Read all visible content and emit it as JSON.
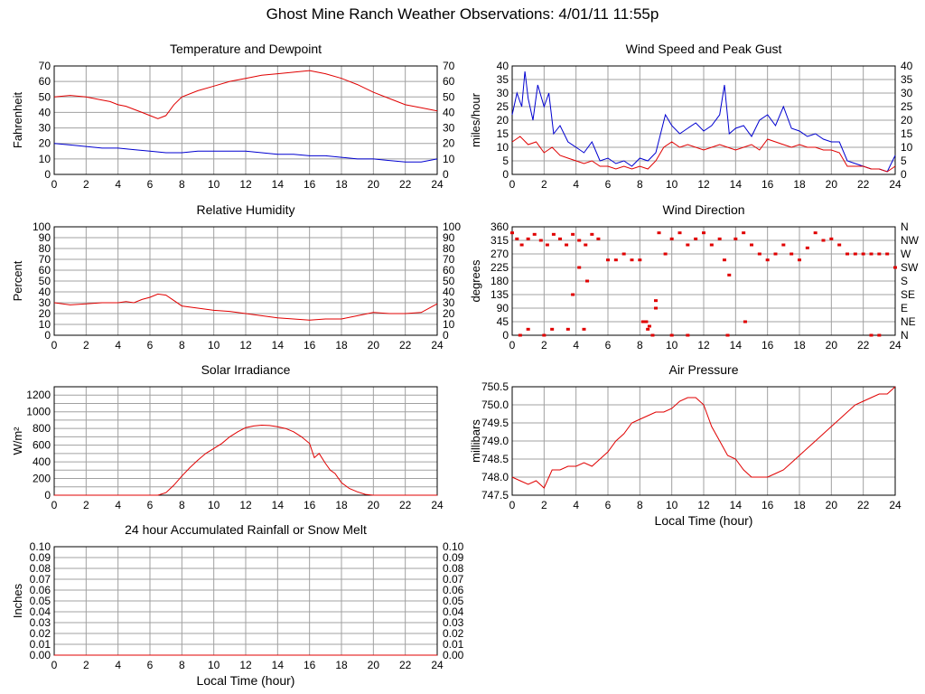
{
  "page": {
    "title": "Ghost Mine Ranch Weather Observations: 4/01/11 11:55p"
  },
  "colors": {
    "series_red": "#e00000",
    "series_blue": "#0000d0",
    "grid": "#a0a0a0",
    "frame": "#000000"
  },
  "chart_data": [
    {
      "id": "temp",
      "type": "line",
      "title": "Temperature and Dewpoint",
      "ylabel": "Fahrenheit",
      "xlabel": "",
      "xlim": [
        0,
        24
      ],
      "ylim": [
        0,
        70
      ],
      "xticks": [
        "0",
        "2",
        "4",
        "6",
        "8",
        "10",
        "12",
        "14",
        "16",
        "18",
        "20",
        "22",
        "24"
      ],
      "yticks": [
        "0",
        "10",
        "20",
        "30",
        "40",
        "50",
        "60",
        "70"
      ],
      "right_yticks": [
        "0",
        "10",
        "20",
        "30",
        "40",
        "50",
        "60",
        "70"
      ],
      "grid": true,
      "series": [
        {
          "color": "#e00000",
          "x": [
            0,
            1,
            2,
            3,
            3.5,
            4,
            4.5,
            5,
            5.5,
            6,
            6.5,
            7,
            7.5,
            8,
            9,
            10,
            11,
            12,
            13,
            14,
            15,
            16,
            16.5,
            17,
            18,
            19,
            20,
            21,
            22,
            23,
            24
          ],
          "y": [
            50,
            51,
            50,
            48,
            47,
            45,
            44,
            42,
            40,
            38,
            36,
            38,
            45,
            50,
            54,
            57,
            60,
            62,
            64,
            65,
            66,
            67,
            66,
            65,
            62,
            58,
            53,
            49,
            45,
            43,
            41
          ]
        },
        {
          "color": "#0000d0",
          "x": [
            0,
            1,
            2,
            3,
            4,
            5,
            6,
            7,
            8,
            9,
            10,
            11,
            12,
            13,
            14,
            15,
            16,
            17,
            18,
            19,
            20,
            21,
            22,
            23,
            24
          ],
          "y": [
            20,
            19,
            18,
            17,
            17,
            16,
            15,
            14,
            14,
            15,
            15,
            15,
            15,
            14,
            13,
            13,
            12,
            12,
            11,
            10,
            10,
            9,
            8,
            8,
            10
          ]
        }
      ]
    },
    {
      "id": "wind",
      "type": "line",
      "title": "Wind Speed and Peak Gust",
      "ylabel": "miles/hour",
      "xlabel": "",
      "xlim": [
        0,
        24
      ],
      "ylim": [
        0,
        40
      ],
      "xticks": [
        "0",
        "2",
        "4",
        "6",
        "8",
        "10",
        "12",
        "14",
        "16",
        "18",
        "20",
        "22",
        "24"
      ],
      "yticks": [
        "0",
        "5",
        "10",
        "15",
        "20",
        "25",
        "30",
        "35",
        "40"
      ],
      "right_yticks": [
        "0",
        "5",
        "10",
        "15",
        "20",
        "25",
        "30",
        "35",
        "40"
      ],
      "grid": true,
      "series": [
        {
          "color": "#0000d0",
          "x": [
            0,
            0.3,
            0.6,
            0.8,
            1,
            1.3,
            1.6,
            2,
            2.3,
            2.6,
            3,
            3.5,
            4,
            4.5,
            5,
            5.5,
            6,
            6.5,
            7,
            7.5,
            8,
            8.5,
            9,
            9.3,
            9.6,
            10,
            10.5,
            11,
            11.5,
            12,
            12.5,
            13,
            13.3,
            13.6,
            14,
            14.5,
            15,
            15.5,
            16,
            16.5,
            17,
            17.5,
            18,
            18.5,
            19,
            19.5,
            20,
            20.5,
            21,
            21.5,
            22,
            22.5,
            23,
            23.5,
            24
          ],
          "y": [
            22,
            30,
            25,
            38,
            28,
            20,
            33,
            25,
            30,
            15,
            18,
            12,
            10,
            8,
            12,
            5,
            6,
            4,
            5,
            3,
            6,
            5,
            8,
            15,
            22,
            18,
            15,
            17,
            19,
            16,
            18,
            22,
            33,
            15,
            17,
            18,
            14,
            20,
            22,
            18,
            25,
            17,
            16,
            14,
            15,
            13,
            12,
            12,
            5,
            4,
            3,
            2,
            2,
            1,
            7
          ]
        },
        {
          "color": "#e00000",
          "x": [
            0,
            0.5,
            1,
            1.5,
            2,
            2.5,
            3,
            3.5,
            4,
            4.5,
            5,
            5.5,
            6,
            6.5,
            7,
            7.5,
            8,
            8.5,
            9,
            9.5,
            10,
            10.5,
            11,
            11.5,
            12,
            12.5,
            13,
            13.5,
            14,
            14.5,
            15,
            15.5,
            16,
            16.5,
            17,
            17.5,
            18,
            18.5,
            19,
            19.5,
            20,
            20.5,
            21,
            21.5,
            22,
            22.5,
            23,
            23.5,
            24
          ],
          "y": [
            12,
            14,
            11,
            12,
            8,
            10,
            7,
            6,
            5,
            4,
            5,
            3,
            3,
            2,
            3,
            2,
            3,
            2,
            5,
            10,
            12,
            10,
            11,
            10,
            9,
            10,
            11,
            10,
            9,
            10,
            11,
            9,
            13,
            12,
            11,
            10,
            11,
            10,
            10,
            9,
            9,
            8,
            3,
            3,
            3,
            2,
            2,
            1,
            3
          ]
        }
      ]
    },
    {
      "id": "humidity",
      "type": "line",
      "title": "Relative Humidity",
      "ylabel": "Percent",
      "xlabel": "",
      "xlim": [
        0,
        24
      ],
      "ylim": [
        0,
        100
      ],
      "xticks": [
        "0",
        "2",
        "4",
        "6",
        "8",
        "10",
        "12",
        "14",
        "16",
        "18",
        "20",
        "22",
        "24"
      ],
      "yticks": [
        "0",
        "10",
        "20",
        "30",
        "40",
        "50",
        "60",
        "70",
        "80",
        "90",
        "100"
      ],
      "right_yticks": [
        "0",
        "10",
        "20",
        "30",
        "40",
        "50",
        "60",
        "70",
        "80",
        "90",
        "100"
      ],
      "grid": true,
      "series": [
        {
          "color": "#e00000",
          "x": [
            0,
            1,
            2,
            3,
            4,
            4.5,
            5,
            5.5,
            6,
            6.5,
            7,
            7.5,
            8,
            9,
            10,
            11,
            12,
            13,
            14,
            15,
            16,
            17,
            18,
            19,
            20,
            21,
            22,
            23,
            24
          ],
          "y": [
            30,
            28,
            29,
            30,
            30,
            31,
            30,
            33,
            35,
            38,
            37,
            32,
            27,
            25,
            23,
            22,
            20,
            18,
            16,
            15,
            14,
            15,
            15,
            18,
            21,
            20,
            20,
            21,
            29
          ]
        }
      ]
    },
    {
      "id": "direction",
      "type": "scatter",
      "title": "Wind Direction",
      "ylabel": "degrees",
      "xlabel": "",
      "xlim": [
        0,
        24
      ],
      "ylim": [
        0,
        360
      ],
      "xticks": [
        "0",
        "2",
        "4",
        "6",
        "8",
        "10",
        "12",
        "14",
        "16",
        "18",
        "20",
        "22",
        "24"
      ],
      "yticks": [
        "0",
        "45",
        "90",
        "135",
        "180",
        "225",
        "270",
        "315",
        "360"
      ],
      "right_yticks": [
        "N",
        "NE",
        "E",
        "SE",
        "S",
        "SW",
        "W",
        "NW",
        "N"
      ],
      "grid": true,
      "series": [
        {
          "color": "#e00000",
          "x": [
            0,
            0.3,
            0.6,
            1,
            1.4,
            1.8,
            2.2,
            2.6,
            3,
            3.4,
            3.8,
            4.2,
            4.6,
            5,
            5.4,
            0.5,
            2,
            3.8,
            4.2,
            4.7,
            6,
            6.5,
            7,
            7.5,
            8,
            8.4,
            8.6,
            8.8,
            9,
            9.2,
            9.6,
            10,
            10.5,
            11,
            11.5,
            12,
            12.5,
            13,
            13.3,
            13.6,
            14,
            14.5,
            15,
            15.5,
            16,
            16.5,
            17,
            17.5,
            18,
            18.5,
            19,
            19.5,
            20,
            20.5,
            21,
            21.5,
            22,
            22.5,
            23,
            23.5,
            24,
            1,
            2.5,
            3.5,
            4.5,
            8.5,
            8.2,
            9,
            10,
            11,
            13.5,
            14.6,
            22.5,
            23
          ],
          "y": [
            340,
            320,
            300,
            320,
            335,
            315,
            300,
            335,
            320,
            300,
            335,
            315,
            300,
            335,
            320,
            0,
            0,
            135,
            225,
            180,
            250,
            250,
            270,
            250,
            250,
            45,
            30,
            0,
            90,
            340,
            270,
            320,
            340,
            300,
            320,
            340,
            300,
            320,
            250,
            200,
            320,
            340,
            300,
            270,
            250,
            270,
            300,
            270,
            250,
            290,
            340,
            315,
            320,
            300,
            270,
            270,
            270,
            270,
            270,
            270,
            225,
            20,
            20,
            20,
            20,
            20,
            45,
            115,
            0,
            0,
            0,
            45,
            0,
            0
          ]
        }
      ]
    },
    {
      "id": "solar",
      "type": "line",
      "title": "Solar Irradiance",
      "ylabel": "W/m²",
      "xlabel": "",
      "xlim": [
        0,
        24
      ],
      "ylim": [
        0,
        1300
      ],
      "xticks": [
        "0",
        "2",
        "4",
        "6",
        "8",
        "10",
        "12",
        "14",
        "16",
        "18",
        "20",
        "22",
        "24"
      ],
      "yticks": [
        "0",
        "200",
        "400",
        "600",
        "800",
        "1000",
        "1200"
      ],
      "right_yticks": [],
      "grid": true,
      "series": [
        {
          "color": "#e00000",
          "x": [
            0,
            6.5,
            7,
            7.5,
            8,
            8.5,
            9,
            9.5,
            10,
            10.5,
            11,
            11.5,
            12,
            12.5,
            13,
            13.5,
            14,
            14.5,
            15,
            15.5,
            16,
            16.3,
            16.6,
            17,
            17.3,
            17.6,
            18,
            18.5,
            19,
            19.5,
            20,
            24
          ],
          "y": [
            0,
            0,
            30,
            120,
            230,
            330,
            420,
            500,
            560,
            620,
            700,
            760,
            810,
            830,
            840,
            835,
            820,
            800,
            760,
            700,
            620,
            450,
            500,
            380,
            300,
            260,
            150,
            80,
            40,
            10,
            0,
            0
          ]
        }
      ]
    },
    {
      "id": "pressure",
      "type": "line",
      "title": "Air Pressure",
      "ylabel": "millibars",
      "xlabel": "Local Time (hour)",
      "xlim": [
        0,
        24
      ],
      "ylim": [
        747.5,
        750.5
      ],
      "xticks": [
        "0",
        "2",
        "4",
        "6",
        "8",
        "10",
        "12",
        "14",
        "16",
        "18",
        "20",
        "22",
        "24"
      ],
      "yticks": [
        "747.5",
        "748.0",
        "748.5",
        "749.0",
        "749.5",
        "750.0",
        "750.5"
      ],
      "right_yticks": [],
      "grid": true,
      "series": [
        {
          "color": "#e00000",
          "x": [
            0,
            0.5,
            1,
            1.5,
            2,
            2.5,
            3,
            3.5,
            4,
            4.5,
            5,
            5.5,
            6,
            6.5,
            7,
            7.5,
            8,
            8.5,
            9,
            9.5,
            10,
            10.5,
            11,
            11.5,
            12,
            12.5,
            13,
            13.5,
            14,
            14.5,
            15,
            15.5,
            16,
            16.5,
            17,
            17.5,
            18,
            18.5,
            19,
            19.5,
            20,
            20.5,
            21,
            21.5,
            22,
            22.5,
            23,
            23.5,
            24
          ],
          "y": [
            748.0,
            747.9,
            747.8,
            747.9,
            747.7,
            748.2,
            748.2,
            748.3,
            748.3,
            748.4,
            748.3,
            748.5,
            748.7,
            749.0,
            749.2,
            749.5,
            749.6,
            749.7,
            749.8,
            749.8,
            749.9,
            750.1,
            750.2,
            750.2,
            750.0,
            749.4,
            749.0,
            748.6,
            748.5,
            748.2,
            748.0,
            748.0,
            748.0,
            748.1,
            748.2,
            748.4,
            748.6,
            748.8,
            749.0,
            749.2,
            749.4,
            749.6,
            749.8,
            750.0,
            750.1,
            750.2,
            750.3,
            750.3,
            750.5
          ]
        }
      ]
    },
    {
      "id": "rain",
      "type": "line",
      "title": "24 hour Accumulated Rainfall or Snow Melt",
      "ylabel": "Inches",
      "xlabel": "Local Time (hour)",
      "xlim": [
        0,
        24
      ],
      "ylim": [
        0,
        0.1
      ],
      "xticks": [
        "0",
        "2",
        "4",
        "6",
        "8",
        "10",
        "12",
        "14",
        "16",
        "18",
        "20",
        "22",
        "24"
      ],
      "yticks": [
        "0.00",
        "0.01",
        "0.02",
        "0.03",
        "0.04",
        "0.05",
        "0.06",
        "0.07",
        "0.08",
        "0.09",
        "0.10"
      ],
      "right_yticks": [
        "0.00",
        "0.01",
        "0.02",
        "0.03",
        "0.04",
        "0.05",
        "0.06",
        "0.07",
        "0.08",
        "0.09",
        "0.10"
      ],
      "grid": true,
      "series": [
        {
          "color": "#e00000",
          "x": [
            0,
            24
          ],
          "y": [
            0,
            0
          ]
        }
      ]
    }
  ]
}
